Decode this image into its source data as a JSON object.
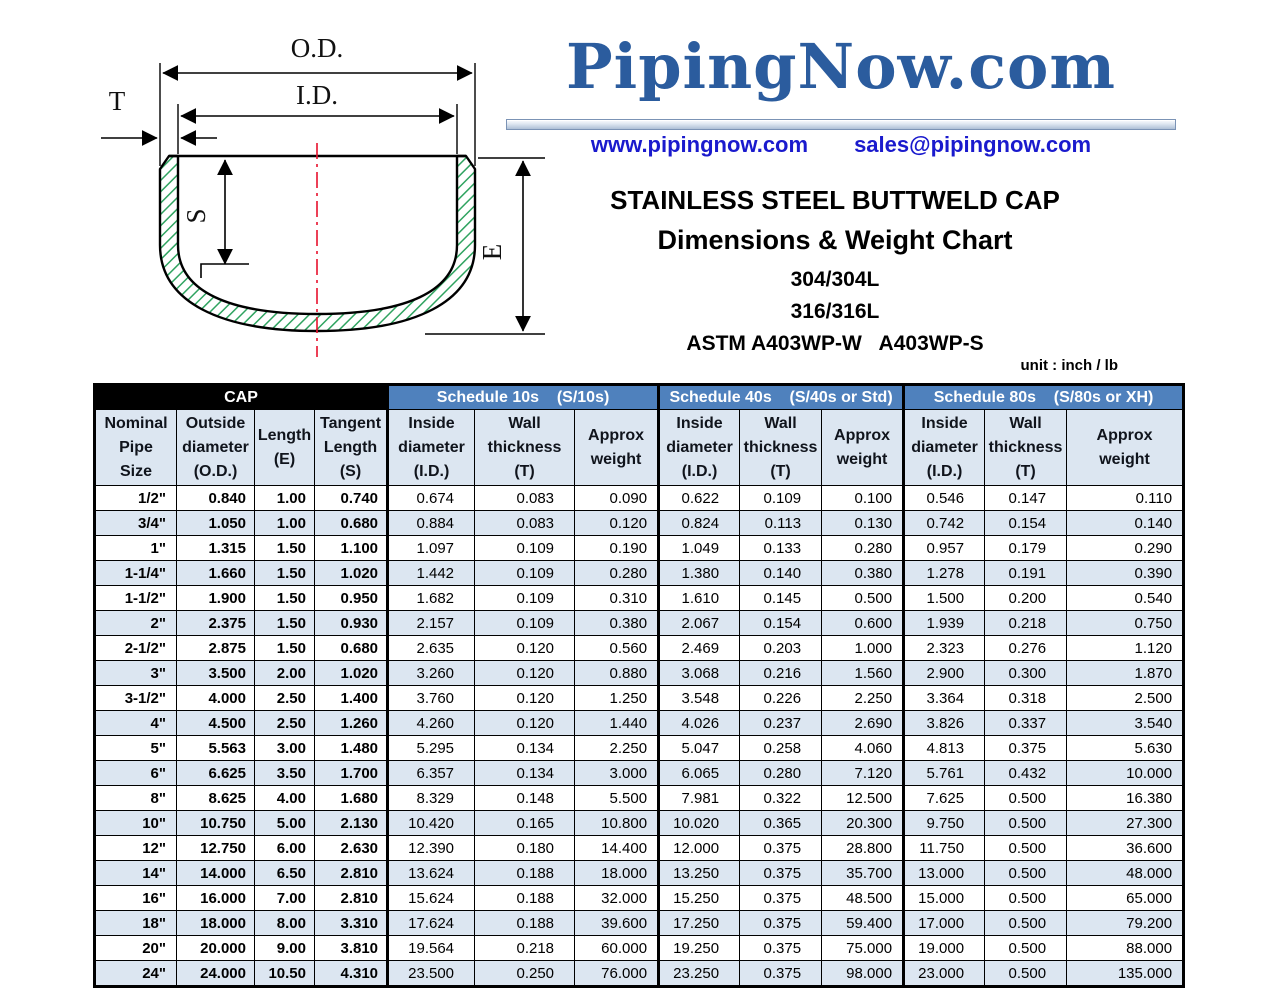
{
  "brand": {
    "logo": "PipingNow.com",
    "website": "www.pipingnow.com",
    "email": "sales@pipingnow.com"
  },
  "title": {
    "product": "STAINLESS STEEL BUTTWELD CAP",
    "chart": "Dimensions & Weight Chart",
    "grade1": "304/304L",
    "grade2": "316/316L",
    "astm": "ASTM A403WP-W   A403WP-S",
    "unit": "unit : inch / lb"
  },
  "diagram": {
    "od_label": "O.D.",
    "id_label": "I.D.",
    "t_label": "T",
    "s_label": "S",
    "e_label": "E",
    "hatch_color": "#2fa360",
    "centerline_color": "#e8112d"
  },
  "table": {
    "colors": {
      "cap_header_bg": "#000000",
      "schedule_header_bg": "#4f81bd",
      "header_cell_bg": "#dce6f1",
      "alt_row_bg": "#dce6f1",
      "border": "#000000"
    },
    "groups": [
      {
        "label": "CAP",
        "span": 4,
        "type": "cap"
      },
      {
        "label": "Schedule 10s    (S/10s)",
        "span": 3,
        "type": "schedule"
      },
      {
        "label": "Schedule 40s    (S/40s or Std)",
        "span": 3,
        "type": "schedule"
      },
      {
        "label": "Schedule 80s    (S/80s or XH)",
        "span": 3,
        "type": "schedule"
      }
    ],
    "columns": [
      {
        "lines": [
          "Nominal",
          "Pipe",
          "Size"
        ]
      },
      {
        "lines": [
          "Outside",
          "diameter",
          "(O.D.)"
        ]
      },
      {
        "lines": [
          "Length",
          "(E)"
        ]
      },
      {
        "lines": [
          "Tangent",
          "Length",
          "(S)"
        ]
      },
      {
        "lines": [
          "Inside",
          "diameter",
          "(I.D.)"
        ]
      },
      {
        "lines": [
          "Wall",
          "thickness",
          "(T)"
        ]
      },
      {
        "lines": [
          "Approx",
          "weight"
        ]
      },
      {
        "lines": [
          "Inside",
          "diameter",
          "(I.D.)"
        ]
      },
      {
        "lines": [
          "Wall",
          "thickness",
          "(T)"
        ]
      },
      {
        "lines": [
          "Approx",
          "weight"
        ]
      },
      {
        "lines": [
          "Inside",
          "diameter",
          "(I.D.)"
        ]
      },
      {
        "lines": [
          "Wall",
          "thickness",
          "(T)"
        ]
      },
      {
        "lines": [
          "Approx",
          "weight"
        ]
      }
    ],
    "rows": [
      [
        "1/2\"",
        "0.840",
        "1.00",
        "0.740",
        "0.674",
        "0.083",
        "0.090",
        "0.622",
        "0.109",
        "0.100",
        "0.546",
        "0.147",
        "0.110"
      ],
      [
        "3/4\"",
        "1.050",
        "1.00",
        "0.680",
        "0.884",
        "0.083",
        "0.120",
        "0.824",
        "0.113",
        "0.130",
        "0.742",
        "0.154",
        "0.140"
      ],
      [
        "1\"",
        "1.315",
        "1.50",
        "1.100",
        "1.097",
        "0.109",
        "0.190",
        "1.049",
        "0.133",
        "0.280",
        "0.957",
        "0.179",
        "0.290"
      ],
      [
        "1-1/4\"",
        "1.660",
        "1.50",
        "1.020",
        "1.442",
        "0.109",
        "0.280",
        "1.380",
        "0.140",
        "0.380",
        "1.278",
        "0.191",
        "0.390"
      ],
      [
        "1-1/2\"",
        "1.900",
        "1.50",
        "0.950",
        "1.682",
        "0.109",
        "0.310",
        "1.610",
        "0.145",
        "0.500",
        "1.500",
        "0.200",
        "0.540"
      ],
      [
        "2\"",
        "2.375",
        "1.50",
        "0.930",
        "2.157",
        "0.109",
        "0.380",
        "2.067",
        "0.154",
        "0.600",
        "1.939",
        "0.218",
        "0.750"
      ],
      [
        "2-1/2\"",
        "2.875",
        "1.50",
        "0.680",
        "2.635",
        "0.120",
        "0.560",
        "2.469",
        "0.203",
        "1.000",
        "2.323",
        "0.276",
        "1.120"
      ],
      [
        "3\"",
        "3.500",
        "2.00",
        "1.020",
        "3.260",
        "0.120",
        "0.880",
        "3.068",
        "0.216",
        "1.560",
        "2.900",
        "0.300",
        "1.870"
      ],
      [
        "3-1/2\"",
        "4.000",
        "2.50",
        "1.400",
        "3.760",
        "0.120",
        "1.250",
        "3.548",
        "0.226",
        "2.250",
        "3.364",
        "0.318",
        "2.500"
      ],
      [
        "4\"",
        "4.500",
        "2.50",
        "1.260",
        "4.260",
        "0.120",
        "1.440",
        "4.026",
        "0.237",
        "2.690",
        "3.826",
        "0.337",
        "3.540"
      ],
      [
        "5\"",
        "5.563",
        "3.00",
        "1.480",
        "5.295",
        "0.134",
        "2.250",
        "5.047",
        "0.258",
        "4.060",
        "4.813",
        "0.375",
        "5.630"
      ],
      [
        "6\"",
        "6.625",
        "3.50",
        "1.700",
        "6.357",
        "0.134",
        "3.000",
        "6.065",
        "0.280",
        "7.120",
        "5.761",
        "0.432",
        "10.000"
      ],
      [
        "8\"",
        "8.625",
        "4.00",
        "1.680",
        "8.329",
        "0.148",
        "5.500",
        "7.981",
        "0.322",
        "12.500",
        "7.625",
        "0.500",
        "16.380"
      ],
      [
        "10\"",
        "10.750",
        "5.00",
        "2.130",
        "10.420",
        "0.165",
        "10.800",
        "10.020",
        "0.365",
        "20.300",
        "9.750",
        "0.500",
        "27.300"
      ],
      [
        "12\"",
        "12.750",
        "6.00",
        "2.630",
        "12.390",
        "0.180",
        "14.400",
        "12.000",
        "0.375",
        "28.800",
        "11.750",
        "0.500",
        "36.600"
      ],
      [
        "14\"",
        "14.000",
        "6.50",
        "2.810",
        "13.624",
        "0.188",
        "18.000",
        "13.250",
        "0.375",
        "35.700",
        "13.000",
        "0.500",
        "48.000"
      ],
      [
        "16\"",
        "16.000",
        "7.00",
        "2.810",
        "15.624",
        "0.188",
        "32.000",
        "15.250",
        "0.375",
        "48.500",
        "15.000",
        "0.500",
        "65.000"
      ],
      [
        "18\"",
        "18.000",
        "8.00",
        "3.310",
        "17.624",
        "0.188",
        "39.600",
        "17.250",
        "0.375",
        "59.400",
        "17.000",
        "0.500",
        "79.200"
      ],
      [
        "20\"",
        "20.000",
        "9.00",
        "3.810",
        "19.564",
        "0.218",
        "60.000",
        "19.250",
        "0.375",
        "75.000",
        "19.000",
        "0.500",
        "88.000"
      ],
      [
        "24\"",
        "24.000",
        "10.50",
        "4.310",
        "23.500",
        "0.250",
        "76.000",
        "23.250",
        "0.375",
        "98.000",
        "23.000",
        "0.500",
        "135.000"
      ]
    ]
  }
}
